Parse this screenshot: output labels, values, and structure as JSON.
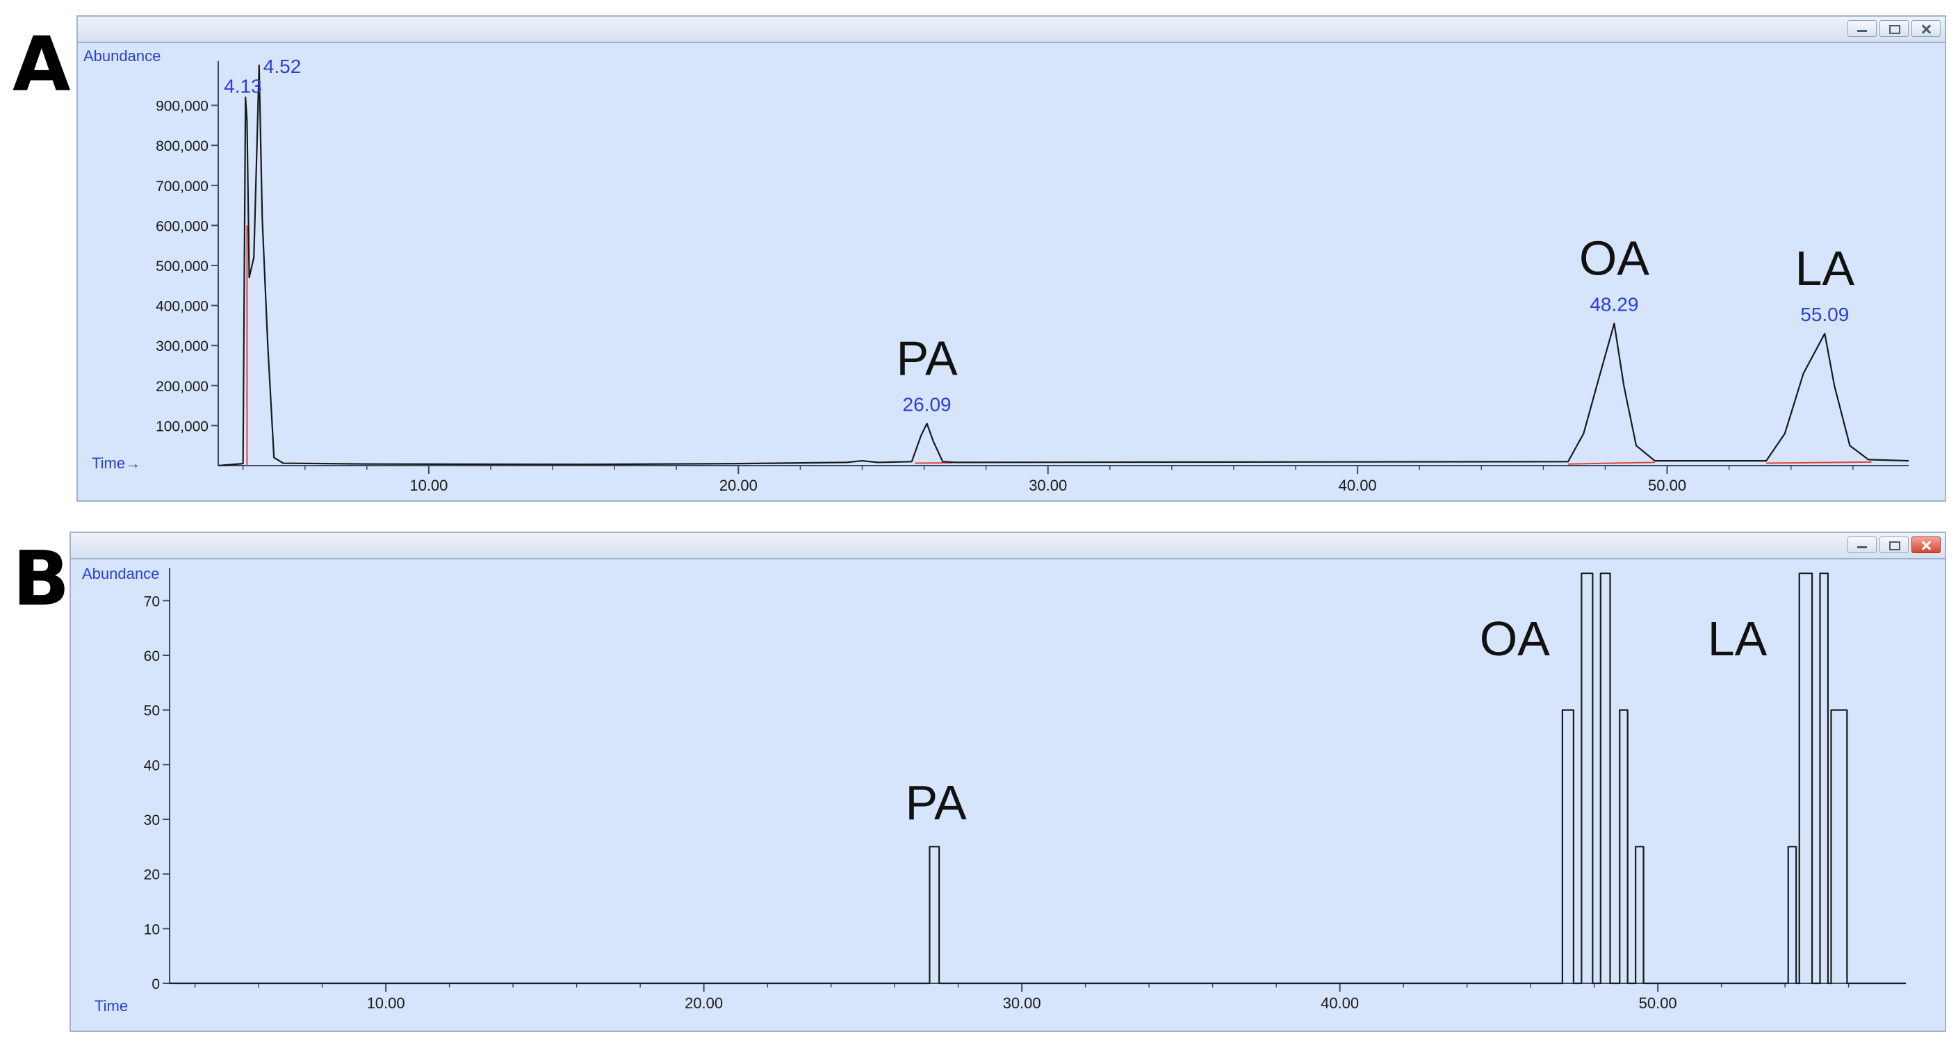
{
  "panels": [
    {
      "letter": "A",
      "y_label": "Abundance",
      "x_label": "Time→",
      "peak_annotations": [
        {
          "text": "PA",
          "x": 26.09
        },
        {
          "text": "OA",
          "x": 48.29
        },
        {
          "text": "LA",
          "x": 55.09
        }
      ]
    },
    {
      "letter": "B",
      "y_label": "Abundance",
      "x_label": "Time",
      "peak_annotations": [
        {
          "text": "PA",
          "x": 27.3
        },
        {
          "text": "OA",
          "x": 45.5
        },
        {
          "text": "LA",
          "x": 52.5
        }
      ]
    }
  ],
  "chart_data": [
    {
      "type": "line",
      "xlim": [
        3.2,
        57.8
      ],
      "ylim": [
        0,
        1000000
      ],
      "x_ticks": [
        "10.00",
        "20.00",
        "30.00",
        "40.00",
        "50.00"
      ],
      "x_tick_values": [
        10,
        20,
        30,
        40,
        50
      ],
      "y_ticks": [
        "100,000",
        "200,000",
        "300,000",
        "400,000",
        "500,000",
        "600,000",
        "700,000",
        "800,000",
        "900,000"
      ],
      "y_tick_values": [
        100000,
        200000,
        300000,
        400000,
        500000,
        600000,
        700000,
        800000,
        900000
      ],
      "series": [
        {
          "color": "#1a1a1a",
          "points": [
            [
              3.2,
              0
            ],
            [
              4.0,
              5000
            ],
            [
              4.08,
              920000
            ],
            [
              4.13,
              860000
            ],
            [
              4.2,
              470000
            ],
            [
              4.35,
              520000
            ],
            [
              4.45,
              800000
            ],
            [
              4.52,
              1000000
            ],
            [
              4.62,
              620000
            ],
            [
              4.8,
              300000
            ],
            [
              5.0,
              20000
            ],
            [
              5.3,
              6000
            ],
            [
              8.0,
              4000
            ],
            [
              15.0,
              3000
            ],
            [
              20.0,
              5000
            ],
            [
              23.5,
              8000
            ],
            [
              24.0,
              12000
            ],
            [
              24.5,
              8000
            ],
            [
              25.6,
              10000
            ],
            [
              25.9,
              75000
            ],
            [
              26.09,
              105000
            ],
            [
              26.3,
              60000
            ],
            [
              26.6,
              10000
            ],
            [
              27.0,
              8000
            ],
            [
              46.8,
              10000
            ],
            [
              47.3,
              80000
            ],
            [
              47.8,
              220000
            ],
            [
              48.29,
              355000
            ],
            [
              48.6,
              200000
            ],
            [
              49.0,
              50000
            ],
            [
              49.6,
              12000
            ],
            [
              53.2,
              12000
            ],
            [
              53.8,
              80000
            ],
            [
              54.4,
              230000
            ],
            [
              55.09,
              330000
            ],
            [
              55.4,
              200000
            ],
            [
              55.9,
              50000
            ],
            [
              56.5,
              15000
            ],
            [
              57.8,
              12000
            ]
          ]
        }
      ],
      "baselines": [
        {
          "color": "#e0443c",
          "points": [
            [
              4.13,
              0
            ],
            [
              4.13,
              600000
            ]
          ]
        },
        {
          "color": "#e0443c",
          "points": [
            [
              25.7,
              6000
            ],
            [
              26.9,
              7000
            ]
          ]
        },
        {
          "color": "#e0443c",
          "points": [
            [
              46.8,
              4000
            ],
            [
              49.6,
              8000
            ]
          ]
        },
        {
          "color": "#e0443c",
          "points": [
            [
              53.2,
              6000
            ],
            [
              56.6,
              9000
            ]
          ]
        }
      ],
      "peak_labels": [
        {
          "text": "4.13",
          "x": 4.13,
          "y": 900000
        },
        {
          "text": "4.52",
          "x": 4.52,
          "y": 950000
        },
        {
          "text": "26.09",
          "x": 26.09,
          "y": 105000
        },
        {
          "text": "48.29",
          "x": 48.29,
          "y": 355000
        },
        {
          "text": "55.09",
          "x": 55.09,
          "y": 330000
        }
      ]
    },
    {
      "type": "line",
      "xlim": [
        3.2,
        57.8
      ],
      "ylim": [
        0,
        75
      ],
      "x_ticks": [
        "10.00",
        "20.00",
        "30.00",
        "40.00",
        "50.00"
      ],
      "x_tick_values": [
        10,
        20,
        30,
        40,
        50
      ],
      "y_ticks": [
        "0",
        "10",
        "20",
        "30",
        "40",
        "50",
        "60",
        "70"
      ],
      "y_tick_values": [
        0,
        10,
        20,
        30,
        40,
        50,
        60,
        70
      ],
      "series": [
        {
          "color": "#1a1a1a",
          "points": [
            [
              3.2,
              0
            ],
            [
              27.1,
              0
            ],
            [
              27.1,
              25
            ],
            [
              27.4,
              25
            ],
            [
              27.4,
              0
            ],
            [
              47.0,
              0
            ],
            [
              47.0,
              50
            ],
            [
              47.35,
              50
            ],
            [
              47.35,
              0
            ],
            [
              47.6,
              0
            ],
            [
              47.6,
              75
            ],
            [
              47.95,
              75
            ],
            [
              47.95,
              0
            ],
            [
              48.2,
              0
            ],
            [
              48.2,
              75
            ],
            [
              48.5,
              75
            ],
            [
              48.5,
              0
            ],
            [
              48.8,
              0
            ],
            [
              48.8,
              50
            ],
            [
              49.05,
              50
            ],
            [
              49.05,
              0
            ],
            [
              49.3,
              0
            ],
            [
              49.3,
              25
            ],
            [
              49.55,
              25
            ],
            [
              49.55,
              0
            ],
            [
              54.1,
              0
            ],
            [
              54.1,
              25
            ],
            [
              54.35,
              25
            ],
            [
              54.35,
              0
            ],
            [
              54.45,
              0
            ],
            [
              54.45,
              75
            ],
            [
              54.85,
              75
            ],
            [
              54.85,
              0
            ],
            [
              55.1,
              0
            ],
            [
              55.1,
              75
            ],
            [
              55.35,
              75
            ],
            [
              55.35,
              0
            ],
            [
              55.45,
              0
            ],
            [
              55.45,
              50
            ],
            [
              55.95,
              50
            ],
            [
              55.95,
              0
            ],
            [
              57.8,
              0
            ]
          ]
        }
      ]
    }
  ]
}
